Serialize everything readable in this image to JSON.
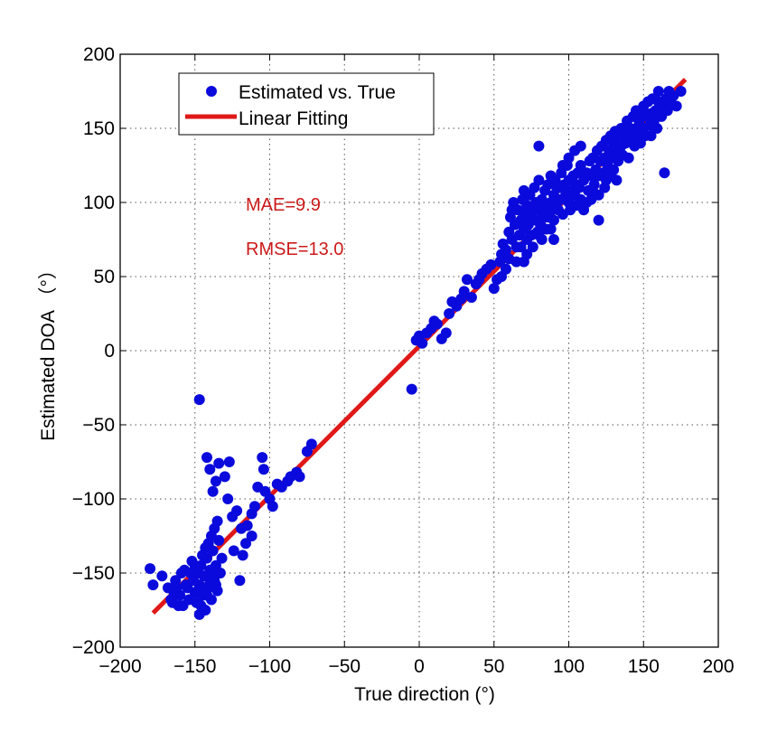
{
  "chart_data": {
    "type": "scatter",
    "xlabel": "True direction (°)",
    "ylabel": "Estimated DOA （°）",
    "xlim": [
      -200,
      200
    ],
    "ylim": [
      -200,
      200
    ],
    "xticks": [
      -200,
      -150,
      -100,
      -50,
      0,
      50,
      100,
      150,
      200
    ],
    "yticks": [
      -200,
      -150,
      -100,
      -50,
      0,
      50,
      100,
      150,
      200
    ],
    "xtick_labels": [
      "−200",
      "−150",
      "−100",
      "−50",
      "0",
      "50",
      "100",
      "150",
      "200"
    ],
    "ytick_labels": [
      "−200",
      "−150",
      "−100",
      "−50",
      "0",
      "50",
      "100",
      "150",
      "200"
    ],
    "grid": true,
    "grid_style": "dotted",
    "legend_position": "top-left",
    "colors": {
      "scatter": "#0a0adc",
      "fit": "#e01818",
      "annotation": "#cc1a1a"
    },
    "annotations": [
      "MAE=9.9",
      "RMSE=13.0"
    ],
    "series": [
      {
        "name": "Estimated vs. True",
        "kind": "scatter",
        "points": [
          [
            -180,
            -147
          ],
          [
            -178,
            -158
          ],
          [
            -172,
            -152
          ],
          [
            -168,
            -160
          ],
          [
            -165,
            -170
          ],
          [
            -163,
            -155
          ],
          [
            -160,
            -165
          ],
          [
            -158,
            -172
          ],
          [
            -157,
            -148
          ],
          [
            -155,
            -160
          ],
          [
            -154,
            -168
          ],
          [
            -152,
            -142
          ],
          [
            -151,
            -155
          ],
          [
            -150,
            -163
          ],
          [
            -149,
            -170
          ],
          [
            -148,
            -150
          ],
          [
            -147,
            -158
          ],
          [
            -146,
            -145
          ],
          [
            -145,
            -165
          ],
          [
            -144,
            -152
          ],
          [
            -143,
            -175
          ],
          [
            -142,
            -140
          ],
          [
            -141,
            -160
          ],
          [
            -140,
            -148
          ],
          [
            -139,
            -168
          ],
          [
            -138,
            -135
          ],
          [
            -137,
            -155
          ],
          [
            -136,
            -145
          ],
          [
            -135,
            -162
          ],
          [
            -134,
            -128
          ],
          [
            -133,
            -150
          ],
          [
            -132,
            -140
          ],
          [
            -148,
            -162
          ],
          [
            -146,
            -172
          ],
          [
            -144,
            -160
          ],
          [
            -142,
            -165
          ],
          [
            -140,
            -155
          ],
          [
            -138,
            -150
          ],
          [
            -136,
            -158
          ],
          [
            -150,
            -145
          ],
          [
            -153,
            -150
          ],
          [
            -156,
            -158
          ],
          [
            -159,
            -150
          ],
          [
            -162,
            -160
          ],
          [
            -164,
            -163
          ],
          [
            -166,
            -168
          ],
          [
            -161,
            -172
          ],
          [
            -147,
            -178
          ],
          [
            -143,
            -133
          ],
          [
            -139,
            -125
          ],
          [
            -137,
            -120
          ],
          [
            -135,
            -115
          ],
          [
            -141,
            -130
          ],
          [
            -145,
            -138
          ],
          [
            -147,
            -33
          ],
          [
            -142,
            -72
          ],
          [
            -140,
            -80
          ],
          [
            -138,
            -95
          ],
          [
            -136,
            -88
          ],
          [
            -134,
            -76
          ],
          [
            -130,
            -85
          ],
          [
            -128,
            -100
          ],
          [
            -127,
            -75
          ],
          [
            -125,
            -112
          ],
          [
            -122,
            -108
          ],
          [
            -120,
            -155
          ],
          [
            -118,
            -138
          ],
          [
            -115,
            -118
          ],
          [
            -112,
            -125
          ],
          [
            -110,
            -105
          ],
          [
            -108,
            -92
          ],
          [
            -105,
            -72
          ],
          [
            -104,
            -80
          ],
          [
            -103,
            -95
          ],
          [
            -100,
            -100
          ],
          [
            -98,
            -105
          ],
          [
            -95,
            -90
          ],
          [
            -92,
            -92
          ],
          [
            -88,
            -88
          ],
          [
            -86,
            -85
          ],
          [
            -82,
            -82
          ],
          [
            -80,
            -85
          ],
          [
            -75,
            -68
          ],
          [
            -72,
            -63
          ],
          [
            -112,
            -110
          ],
          [
            -116,
            -130
          ],
          [
            -119,
            -120
          ],
          [
            -124,
            -135
          ],
          [
            -5,
            -26
          ],
          [
            -2,
            7
          ],
          [
            0,
            10
          ],
          [
            2,
            5
          ],
          [
            5,
            12
          ],
          [
            8,
            15
          ],
          [
            10,
            20
          ],
          [
            12,
            18
          ],
          [
            15,
            8
          ],
          [
            18,
            12
          ],
          [
            20,
            25
          ],
          [
            22,
            33
          ],
          [
            25,
            30
          ],
          [
            28,
            35
          ],
          [
            30,
            40
          ],
          [
            32,
            48
          ],
          [
            35,
            36
          ],
          [
            38,
            45
          ],
          [
            40,
            48
          ],
          [
            42,
            52
          ],
          [
            45,
            55
          ],
          [
            48,
            58
          ],
          [
            50,
            42
          ],
          [
            52,
            48
          ],
          [
            54,
            60
          ],
          [
            55,
            65
          ],
          [
            56,
            72
          ],
          [
            58,
            68
          ],
          [
            60,
            62
          ],
          [
            60,
            80
          ],
          [
            61,
            90
          ],
          [
            62,
            75
          ],
          [
            63,
            100
          ],
          [
            64,
            85
          ],
          [
            65,
            70
          ],
          [
            66,
            95
          ],
          [
            67,
            78
          ],
          [
            68,
            88
          ],
          [
            69,
            102
          ],
          [
            70,
            60
          ],
          [
            70,
            82
          ],
          [
            71,
            92
          ],
          [
            72,
            98
          ],
          [
            72,
            75
          ],
          [
            73,
            85
          ],
          [
            74,
            105
          ],
          [
            75,
            90
          ],
          [
            75,
            78
          ],
          [
            76,
            96
          ],
          [
            77,
            110
          ],
          [
            78,
            88
          ],
          [
            78,
            100
          ],
          [
            79,
            80
          ],
          [
            80,
            95
          ],
          [
            80,
            115
          ],
          [
            81,
            85
          ],
          [
            82,
            102
          ],
          [
            82,
            75
          ],
          [
            83,
            92
          ],
          [
            84,
            108
          ],
          [
            85,
            98
          ],
          [
            85,
            82
          ],
          [
            86,
            112
          ],
          [
            87,
            90
          ],
          [
            88,
            100
          ],
          [
            88,
            118
          ],
          [
            89,
            95
          ],
          [
            90,
            105
          ],
          [
            90,
            88
          ],
          [
            91,
            115
          ],
          [
            92,
            100
          ],
          [
            93,
            95
          ],
          [
            94,
            110
          ],
          [
            95,
            120
          ],
          [
            95,
            102
          ],
          [
            96,
            92
          ],
          [
            97,
            112
          ],
          [
            98,
            105
          ],
          [
            99,
            125
          ],
          [
            100,
            100
          ],
          [
            100,
            115
          ],
          [
            101,
            95
          ],
          [
            102,
            108
          ],
          [
            103,
            118
          ],
          [
            104,
            105
          ],
          [
            105,
            112
          ],
          [
            105,
            98
          ],
          [
            106,
            120
          ],
          [
            107,
            110
          ],
          [
            108,
            102
          ],
          [
            108,
            125
          ],
          [
            110,
            115
          ],
          [
            110,
            95
          ],
          [
            112,
            120
          ],
          [
            113,
            108
          ],
          [
            114,
            128
          ],
          [
            115,
            118
          ],
          [
            115,
            102
          ],
          [
            116,
            130
          ],
          [
            117,
            112
          ],
          [
            118,
            122
          ],
          [
            119,
            135
          ],
          [
            120,
            118
          ],
          [
            120,
            105
          ],
          [
            121,
            128
          ],
          [
            122,
            138
          ],
          [
            123,
            120
          ],
          [
            124,
            130
          ],
          [
            125,
            142
          ],
          [
            125,
            115
          ],
          [
            126,
            125
          ],
          [
            127,
            135
          ],
          [
            128,
            145
          ],
          [
            129,
            130
          ],
          [
            130,
            122
          ],
          [
            130,
            140
          ],
          [
            131,
            148
          ],
          [
            132,
            135
          ],
          [
            133,
            128
          ],
          [
            134,
            145
          ],
          [
            135,
            150
          ],
          [
            135,
            138
          ],
          [
            136,
            132
          ],
          [
            137,
            148
          ],
          [
            138,
            140
          ],
          [
            139,
            155
          ],
          [
            140,
            145
          ],
          [
            140,
            130
          ],
          [
            141,
            150
          ],
          [
            142,
            142
          ],
          [
            143,
            158
          ],
          [
            144,
            138
          ],
          [
            145,
            150
          ],
          [
            145,
            162
          ],
          [
            146,
            145
          ],
          [
            147,
            155
          ],
          [
            148,
            140
          ],
          [
            149,
            160
          ],
          [
            150,
            150
          ],
          [
            150,
            165
          ],
          [
            151,
            145
          ],
          [
            152,
            158
          ],
          [
            153,
            168
          ],
          [
            154,
            152
          ],
          [
            155,
            160
          ],
          [
            155,
            145
          ],
          [
            156,
            170
          ],
          [
            157,
            155
          ],
          [
            158,
            162
          ],
          [
            159,
            150
          ],
          [
            160,
            168
          ],
          [
            160,
            175
          ],
          [
            162,
            158
          ],
          [
            163,
            165
          ],
          [
            164,
            120
          ],
          [
            165,
            170
          ],
          [
            166,
            162
          ],
          [
            167,
            175
          ],
          [
            168,
            168
          ],
          [
            170,
            172
          ],
          [
            172,
            165
          ],
          [
            175,
            175
          ],
          [
            65,
            60
          ],
          [
            68,
            70
          ],
          [
            72,
            65
          ],
          [
            76,
            70
          ],
          [
            80,
            78
          ],
          [
            84,
            90
          ],
          [
            88,
            82
          ],
          [
            92,
            110
          ],
          [
            96,
            125
          ],
          [
            100,
            130
          ],
          [
            104,
            135
          ],
          [
            108,
            138
          ],
          [
            112,
            100
          ],
          [
            116,
            108
          ],
          [
            120,
            88
          ],
          [
            124,
            110
          ],
          [
            128,
            118
          ],
          [
            132,
            115
          ],
          [
            80,
            138
          ],
          [
            90,
            75
          ],
          [
            70,
            108
          ],
          [
            62,
            95
          ],
          [
            58,
            55
          ],
          [
            55,
            50
          ]
        ]
      },
      {
        "name": "Linear Fitting",
        "kind": "line",
        "points": [
          [
            -178,
            -177
          ],
          [
            178,
            183
          ]
        ]
      }
    ]
  }
}
